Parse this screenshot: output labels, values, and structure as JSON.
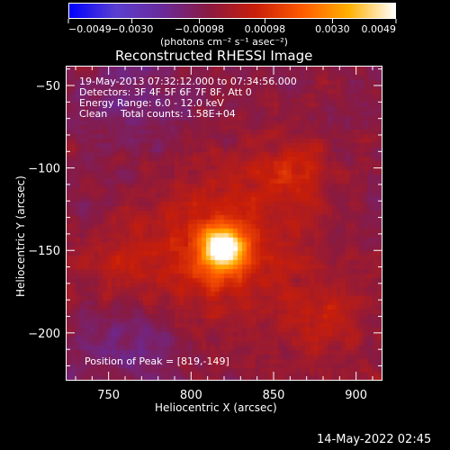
{
  "colorbar": {
    "tick_labels": [
      "−0.0049",
      "−0.0030",
      "−0.00098",
      "0.00098",
      "0.0030",
      "0.0049"
    ],
    "tick_values": [
      -0.0049,
      -0.003,
      -0.00098,
      0.00098,
      0.003,
      0.0049
    ],
    "range": [
      -0.0049,
      0.0049
    ],
    "units": "(photons cm⁻² s⁻¹ asec⁻²)"
  },
  "title": "Reconstructed RHESSI Image",
  "info": {
    "time_range": "19-May-2013 07:32:12.000 to 07:34:56.000",
    "detectors": "Detectors: 3F 4F 5F 6F 7F 8F, Att 0",
    "energy": "Energy Range: 6.0 - 12.0 keV",
    "method": "Clean",
    "counts": "Total counts: 1.58E+04"
  },
  "peak_label": "Position of Peak = [819,-149]",
  "axes": {
    "xlabel": "Heliocentric X (arcsec)",
    "ylabel": "Heliocentric Y (arcsec)",
    "x_ticks": [
      "750",
      "800",
      "850",
      "900"
    ],
    "x_tick_values": [
      750,
      800,
      850,
      900
    ],
    "y_ticks": [
      "−50",
      "−100",
      "−150",
      "−200"
    ],
    "y_tick_values": [
      -50,
      -100,
      -150,
      -200
    ],
    "xlim": [
      724,
      916
    ],
    "ylim": [
      -229,
      -38
    ]
  },
  "timestamp": "14-May-2022 02:45",
  "colors": {
    "background": "#000000",
    "colormap": [
      "#0000ff",
      "#5a3fd0",
      "#6a2a9a",
      "#8a1a40",
      "#c81e0a",
      "#ff5a00",
      "#ffb000",
      "#ffffff"
    ]
  },
  "chart_data": {
    "type": "heatmap",
    "title": "Reconstructed RHESSI Image",
    "xlabel": "Heliocentric X (arcsec)",
    "ylabel": "Heliocentric Y (arcsec)",
    "xlim": [
      724,
      916
    ],
    "ylim": [
      -229,
      -38
    ],
    "value_range": [
      -0.0049,
      0.0049
    ],
    "peak": [
      819,
      -149
    ],
    "peak_value": 0.0049
  }
}
